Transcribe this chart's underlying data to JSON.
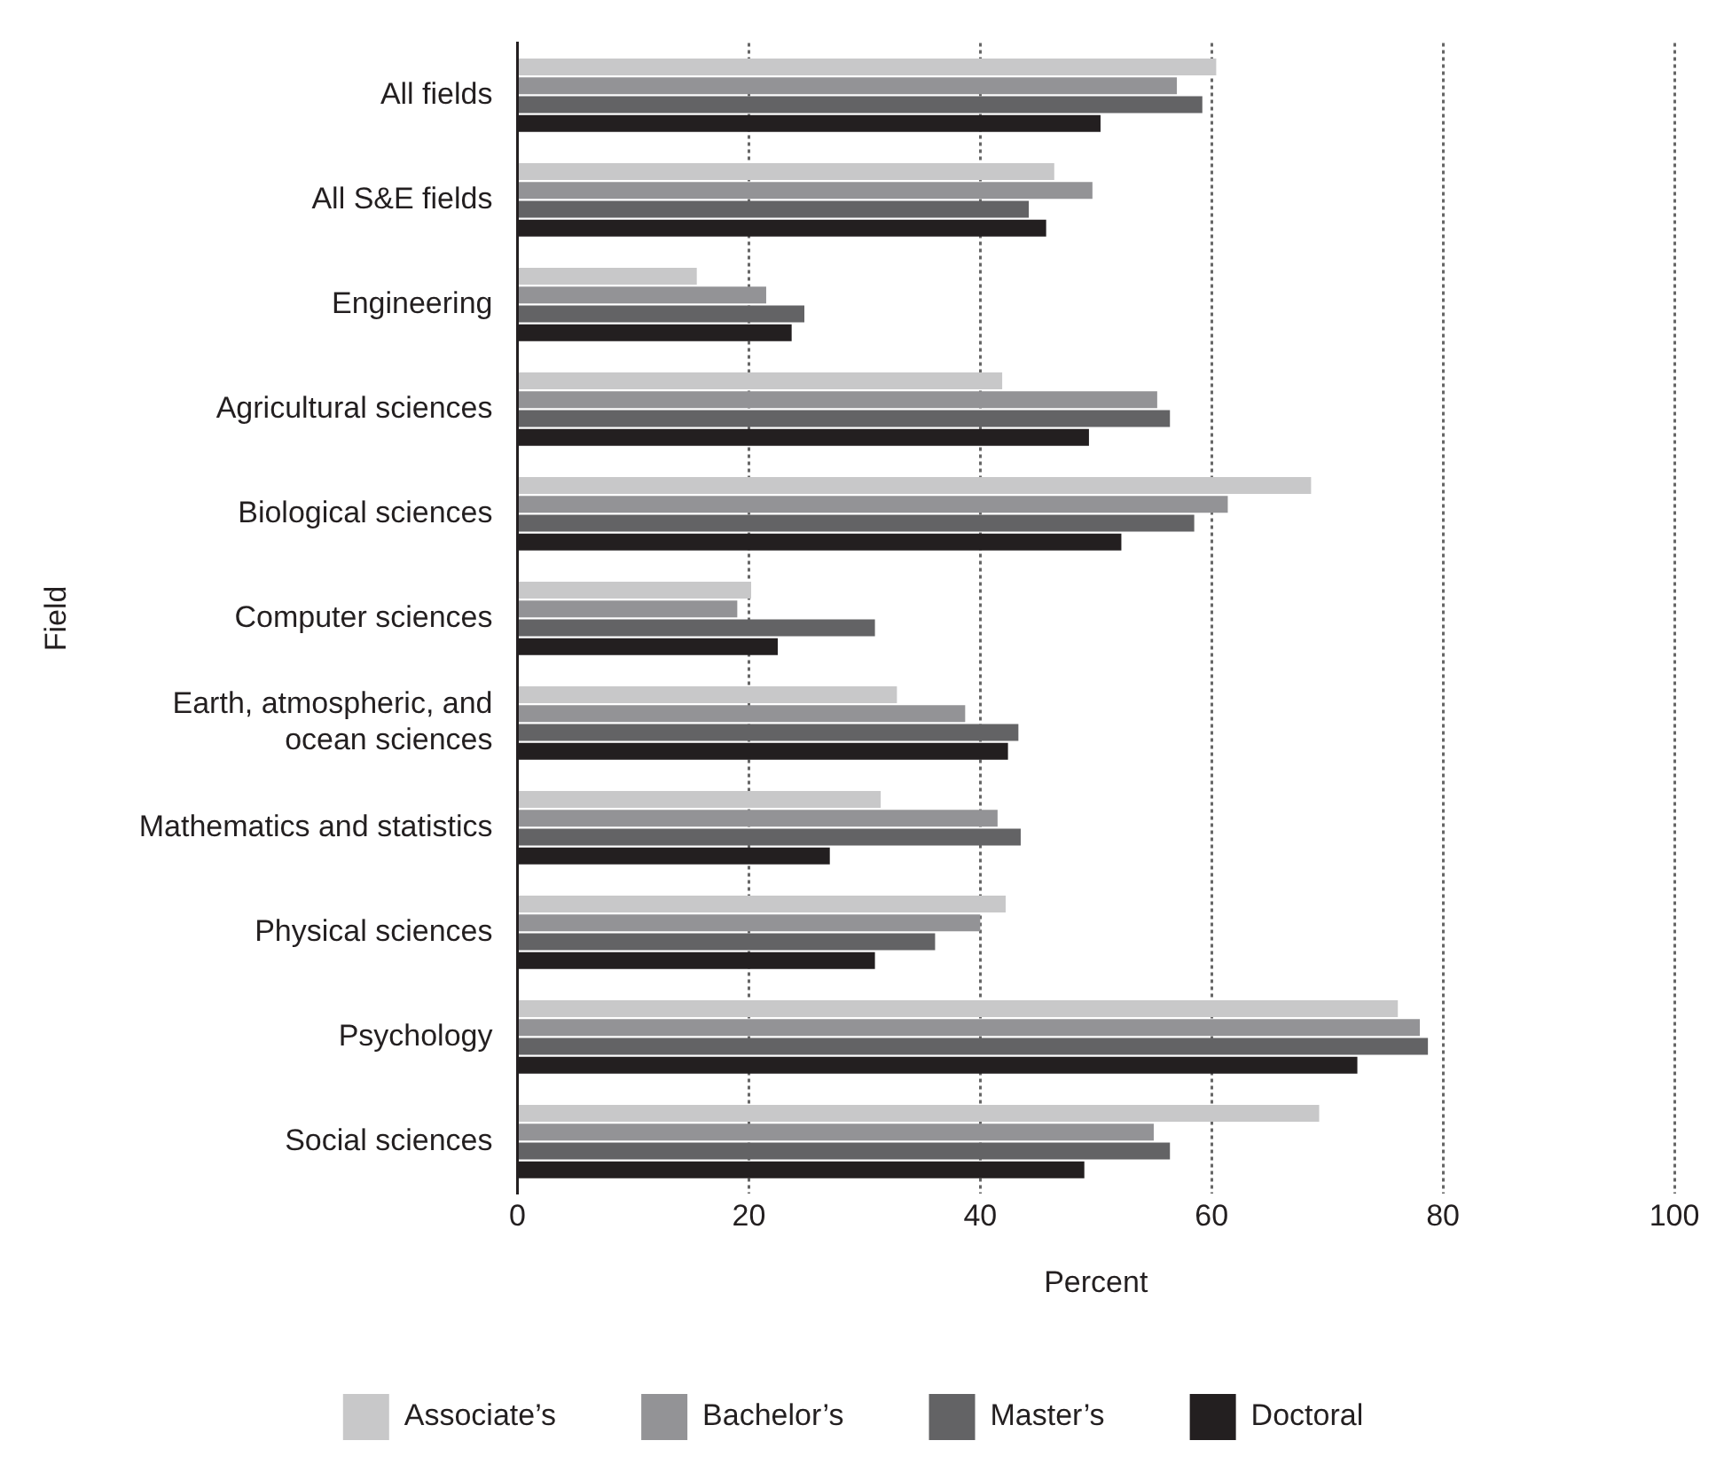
{
  "chart_data": {
    "type": "bar",
    "orientation": "horizontal",
    "xlabel": "Percent",
    "ylabel": "Field",
    "categories": [
      "All fields",
      "All S&E fields",
      "Engineering",
      "Agricultural sciences",
      "Biological sciences",
      "Computer sciences",
      "Earth, atmospheric, and ocean sciences",
      "Mathematics and statistics",
      "Physical sciences",
      "Psychology",
      "Social sciences"
    ],
    "series": [
      {
        "name": "Associate’s",
        "color": "#c8c8c9",
        "values": [
          60.4,
          46.4,
          15.5,
          41.9,
          68.6,
          20.2,
          32.8,
          31.4,
          42.2,
          76.1,
          69.3
        ]
      },
      {
        "name": "Bachelor’s",
        "color": "#939396",
        "values": [
          57.0,
          49.7,
          21.5,
          55.3,
          61.4,
          19.0,
          38.7,
          41.5,
          40.0,
          78.0,
          55.0
        ]
      },
      {
        "name": "Master’s",
        "color": "#636365",
        "values": [
          59.2,
          44.2,
          24.8,
          56.4,
          58.5,
          30.9,
          43.3,
          43.5,
          36.1,
          78.7,
          56.4
        ]
      },
      {
        "name": "Doctoral",
        "color": "#231f20",
        "values": [
          50.4,
          45.7,
          23.7,
          49.4,
          52.2,
          22.5,
          42.4,
          27.0,
          30.9,
          72.6,
          49.0
        ]
      }
    ],
    "xlim": [
      0,
      100
    ],
    "xticks": [
      0,
      20,
      40,
      60,
      80,
      100
    ],
    "grid": "x",
    "legend": "bottom"
  }
}
